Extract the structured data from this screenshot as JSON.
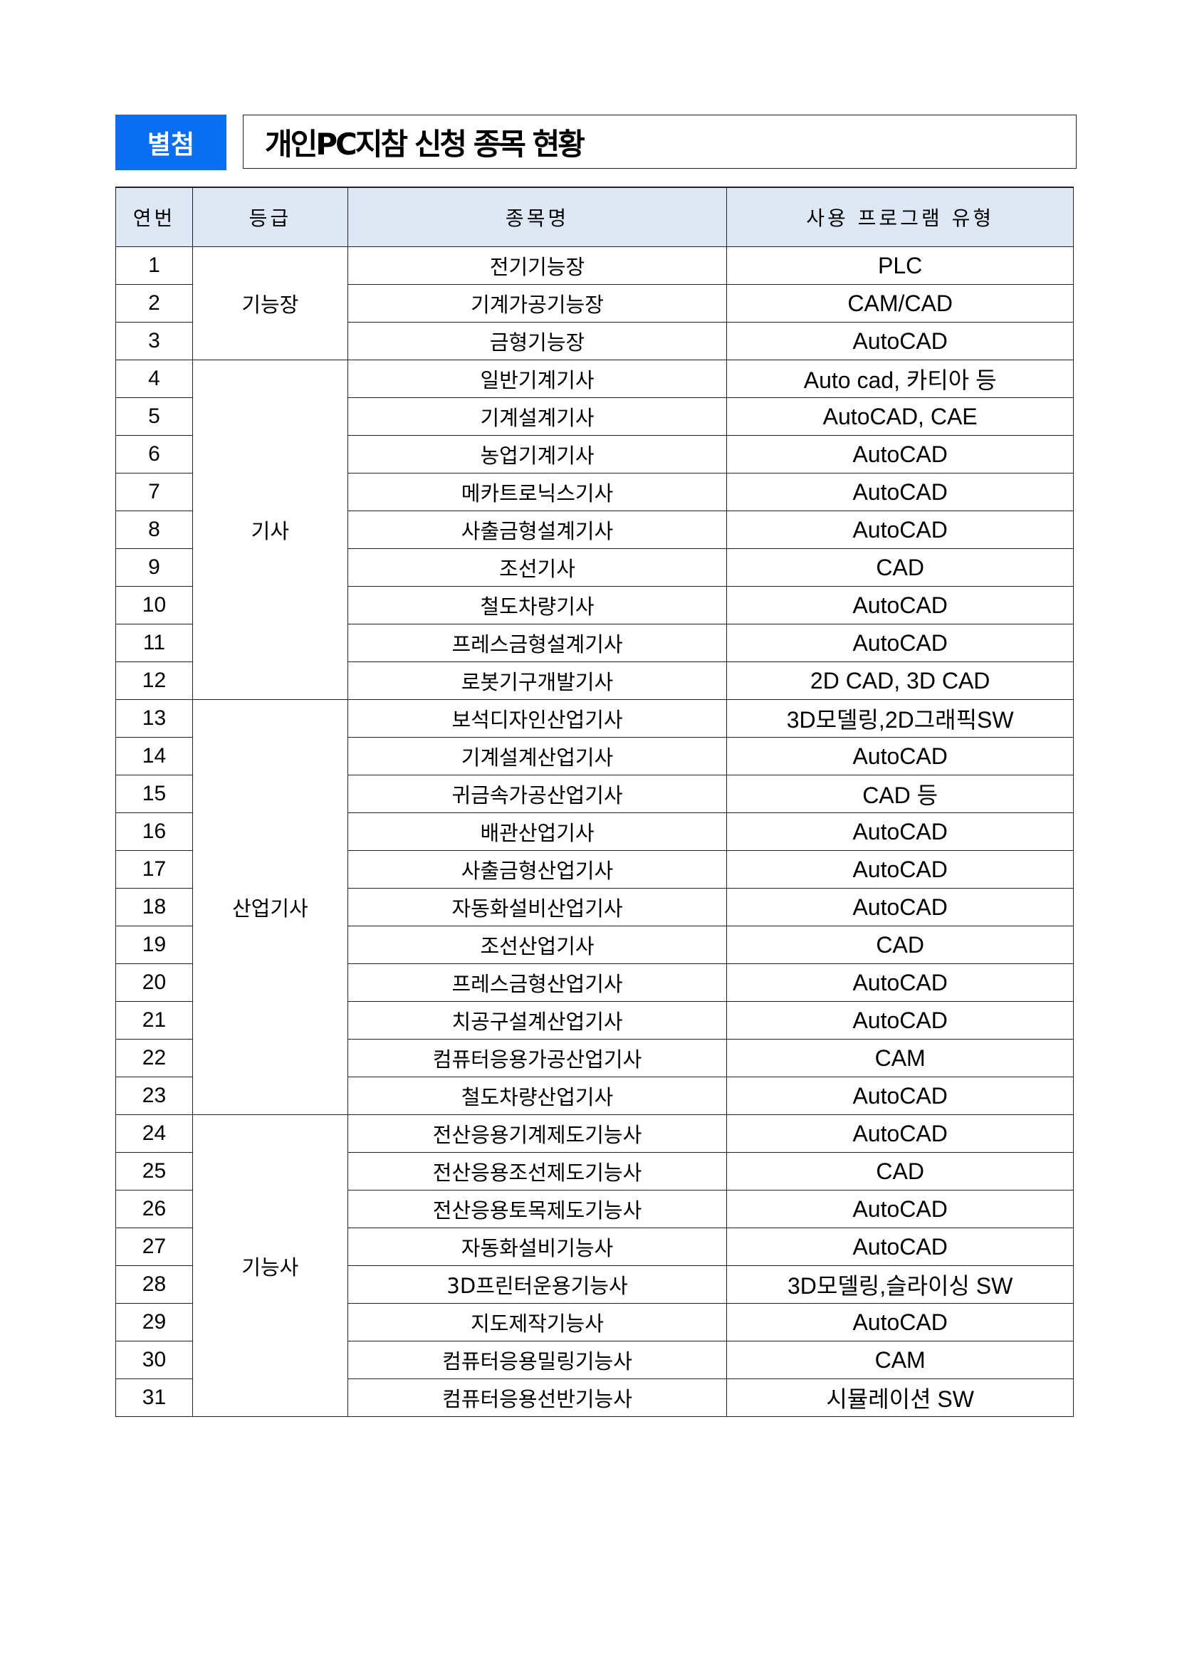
{
  "badge": "별첨",
  "title": "개인PC지참 신청 종목 현황",
  "headers": [
    "연번",
    "등급",
    "종목명",
    "사용 프로그램 유형"
  ],
  "groups": [
    {
      "grade": "기능장",
      "rows": [
        [
          "1",
          "전기기능장",
          "PLC"
        ],
        [
          "2",
          "기계가공기능장",
          "CAM/CAD"
        ],
        [
          "3",
          "금형기능장",
          "AutoCAD"
        ]
      ]
    },
    {
      "grade": "기사",
      "rows": [
        [
          "4",
          "일반기계기사",
          "Auto cad, 카티아 등"
        ],
        [
          "5",
          "기계설계기사",
          "AutoCAD, CAE"
        ],
        [
          "6",
          "농업기계기사",
          "AutoCAD"
        ],
        [
          "7",
          "메카트로닉스기사",
          "AutoCAD"
        ],
        [
          "8",
          "사출금형설계기사",
          "AutoCAD"
        ],
        [
          "9",
          "조선기사",
          "CAD"
        ],
        [
          "10",
          "철도차량기사",
          "AutoCAD"
        ],
        [
          "11",
          "프레스금형설계기사",
          "AutoCAD"
        ],
        [
          "12",
          "로봇기구개발기사",
          "2D CAD, 3D CAD"
        ]
      ]
    },
    {
      "grade": "산업기사",
      "rows": [
        [
          "13",
          "보석디자인산업기사",
          "3D모델링,2D그래픽SW"
        ],
        [
          "14",
          "기계설계산업기사",
          "AutoCAD"
        ],
        [
          "15",
          "귀금속가공산업기사",
          "CAD 등"
        ],
        [
          "16",
          "배관산업기사",
          "AutoCAD"
        ],
        [
          "17",
          "사출금형산업기사",
          "AutoCAD"
        ],
        [
          "18",
          "자동화설비산업기사",
          "AutoCAD"
        ],
        [
          "19",
          "조선산업기사",
          "CAD"
        ],
        [
          "20",
          "프레스금형산업기사",
          "AutoCAD"
        ],
        [
          "21",
          "치공구설계산업기사",
          "AutoCAD"
        ],
        [
          "22",
          "컴퓨터응용가공산업기사",
          "CAM"
        ],
        [
          "23",
          "철도차량산업기사",
          "AutoCAD"
        ]
      ]
    },
    {
      "grade": "기능사",
      "rows": [
        [
          "24",
          "전산응용기계제도기능사",
          "AutoCAD"
        ],
        [
          "25",
          "전산응용조선제도기능사",
          "CAD"
        ],
        [
          "26",
          "전산응용토목제도기능사",
          "AutoCAD"
        ],
        [
          "27",
          "자동화설비기능사",
          "AutoCAD"
        ],
        [
          "28",
          "3D프린터운용기능사",
          "3D모델링,슬라이싱 SW"
        ],
        [
          "29",
          "지도제작기능사",
          "AutoCAD"
        ],
        [
          "30",
          "컴퓨터응용밀링기능사",
          "CAM"
        ],
        [
          "31",
          "컴퓨터응용선반기능사",
          "시뮬레이션 SW"
        ]
      ]
    }
  ],
  "colors": {
    "badge": "#0a6ef0",
    "header_bg": "#dde8f4"
  }
}
